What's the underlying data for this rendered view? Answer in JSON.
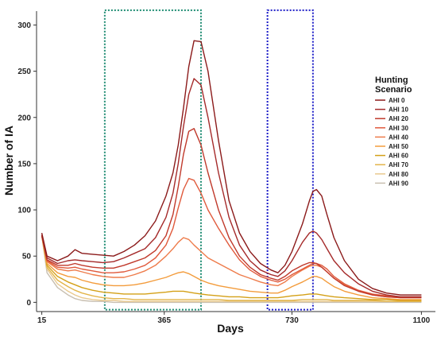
{
  "chart_data": {
    "type": "line",
    "xlabel": "Days",
    "ylabel": "Number of IA",
    "xlim": [
      0,
      1140
    ],
    "ylim": [
      -10,
      315
    ],
    "x_ticks": [
      15,
      365,
      730,
      1100
    ],
    "y_ticks": [
      0,
      50,
      100,
      150,
      200,
      250,
      300
    ],
    "grid": false,
    "legend": {
      "title_lines": [
        "Hunting",
        "Scenario"
      ],
      "position": "right"
    },
    "highlight_boxes": [
      {
        "x0": 195,
        "x1": 470,
        "y0": -8,
        "y1": 316,
        "color": "#1a8a70",
        "style": "dotted"
      },
      {
        "x0": 660,
        "x1": 790,
        "y0": -8,
        "y1": 316,
        "color": "#1c1cc8",
        "style": "dotted"
      }
    ],
    "series": [
      {
        "name": "AHI 0",
        "color": "#8b1a1a",
        "x": [
          15,
          30,
          60,
          90,
          110,
          130,
          160,
          190,
          220,
          250,
          280,
          310,
          340,
          370,
          390,
          405,
          420,
          435,
          450,
          470,
          490,
          520,
          550,
          580,
          610,
          640,
          670,
          690,
          710,
          730,
          760,
          780,
          790,
          800,
          815,
          830,
          850,
          880,
          920,
          960,
          1000,
          1040,
          1080,
          1100
        ],
        "y": [
          75,
          50,
          45,
          50,
          57,
          53,
          52,
          51,
          50,
          55,
          62,
          72,
          88,
          115,
          140,
          170,
          210,
          255,
          283,
          282,
          250,
          175,
          110,
          75,
          55,
          42,
          35,
          32,
          40,
          55,
          85,
          110,
          120,
          122,
          115,
          95,
          70,
          45,
          25,
          15,
          10,
          8,
          8,
          8
        ]
      },
      {
        "name": "AHI 10",
        "color": "#a52a2a",
        "x": [
          15,
          30,
          60,
          90,
          110,
          130,
          160,
          190,
          220,
          250,
          280,
          310,
          340,
          370,
          390,
          405,
          420,
          435,
          450,
          470,
          490,
          520,
          550,
          580,
          610,
          640,
          670,
          690,
          710,
          730,
          760,
          780,
          790,
          800,
          815,
          830,
          850,
          880,
          920,
          960,
          1000,
          1040,
          1080,
          1100
        ],
        "y": [
          73,
          48,
          42,
          45,
          46,
          45,
          44,
          43,
          44,
          48,
          53,
          58,
          70,
          92,
          118,
          150,
          190,
          225,
          242,
          235,
          200,
          140,
          92,
          62,
          45,
          35,
          30,
          28,
          34,
          45,
          65,
          75,
          77,
          75,
          68,
          58,
          45,
          32,
          20,
          12,
          8,
          6,
          6,
          6
        ]
      },
      {
        "name": "AHI 20",
        "color": "#c0392b",
        "x": [
          15,
          30,
          60,
          90,
          110,
          130,
          160,
          190,
          220,
          250,
          280,
          310,
          340,
          370,
          390,
          405,
          420,
          435,
          450,
          470,
          490,
          520,
          550,
          580,
          610,
          640,
          670,
          690,
          710,
          730,
          760,
          780,
          790,
          800,
          815,
          830,
          850,
          880,
          920,
          960,
          1000,
          1040,
          1080,
          1100
        ],
        "y": [
          72,
          46,
          40,
          40,
          42,
          40,
          38,
          37,
          37,
          40,
          44,
          48,
          56,
          72,
          95,
          125,
          160,
          185,
          188,
          170,
          140,
          100,
          70,
          50,
          38,
          30,
          26,
          24,
          28,
          34,
          40,
          43,
          43,
          42,
          38,
          33,
          26,
          18,
          12,
          8,
          6,
          5,
          5,
          5
        ]
      },
      {
        "name": "AHI 30",
        "color": "#e05a3c",
        "x": [
          15,
          30,
          60,
          90,
          110,
          130,
          160,
          190,
          220,
          250,
          280,
          310,
          340,
          370,
          390,
          405,
          420,
          435,
          450,
          470,
          490,
          520,
          550,
          580,
          610,
          640,
          670,
          690,
          710,
          730,
          760,
          780,
          790,
          800,
          815,
          830,
          850,
          880,
          920,
          960,
          1000,
          1040,
          1080,
          1100
        ],
        "y": [
          72,
          45,
          38,
          37,
          38,
          36,
          34,
          32,
          32,
          33,
          36,
          40,
          48,
          62,
          80,
          102,
          122,
          134,
          132,
          118,
          100,
          80,
          62,
          46,
          35,
          28,
          24,
          22,
          25,
          30,
          36,
          40,
          42,
          42,
          40,
          36,
          28,
          20,
          13,
          9,
          7,
          6,
          6,
          6
        ]
      },
      {
        "name": "AHI 40",
        "color": "#ee7b4a",
        "x": [
          15,
          30,
          60,
          90,
          110,
          130,
          160,
          190,
          220,
          250,
          280,
          310,
          340,
          370,
          390,
          405,
          420,
          435,
          450,
          470,
          490,
          520,
          550,
          580,
          610,
          640,
          670,
          690,
          710,
          730,
          760,
          780,
          790,
          800,
          815,
          830,
          850,
          880,
          920,
          960,
          1000,
          1040,
          1080,
          1100
        ],
        "y": [
          72,
          44,
          36,
          34,
          35,
          33,
          30,
          28,
          27,
          27,
          30,
          34,
          40,
          50,
          58,
          65,
          70,
          68,
          62,
          55,
          48,
          42,
          36,
          30,
          26,
          22,
          19,
          18,
          22,
          28,
          35,
          39,
          40,
          40,
          38,
          33,
          26,
          19,
          12,
          8,
          6,
          5,
          5,
          5
        ]
      },
      {
        "name": "AHI 50",
        "color": "#f39c3c",
        "x": [
          15,
          30,
          60,
          90,
          110,
          130,
          160,
          190,
          220,
          250,
          280,
          310,
          340,
          370,
          390,
          405,
          420,
          435,
          450,
          470,
          490,
          520,
          550,
          580,
          610,
          640,
          670,
          690,
          710,
          730,
          760,
          780,
          790,
          800,
          815,
          830,
          850,
          880,
          920,
          960,
          1000,
          1040,
          1080,
          1100
        ],
        "y": [
          72,
          42,
          32,
          28,
          27,
          24,
          21,
          19,
          18,
          18,
          19,
          21,
          24,
          27,
          30,
          32,
          33,
          31,
          28,
          24,
          21,
          18,
          16,
          14,
          12,
          11,
          10,
          10,
          13,
          17,
          22,
          26,
          28,
          28,
          26,
          22,
          17,
          12,
          8,
          5,
          4,
          3,
          3,
          3
        ]
      },
      {
        "name": "AHI 60",
        "color": "#d4a017",
        "x": [
          15,
          30,
          60,
          90,
          110,
          130,
          160,
          190,
          220,
          250,
          280,
          310,
          340,
          370,
          390,
          405,
          420,
          435,
          450,
          470,
          490,
          520,
          550,
          580,
          610,
          640,
          670,
          690,
          710,
          730,
          760,
          780,
          790,
          800,
          815,
          830,
          850,
          880,
          920,
          960,
          1000,
          1040,
          1080,
          1100
        ],
        "y": [
          72,
          40,
          28,
          22,
          19,
          16,
          13,
          11,
          10,
          9,
          9,
          9,
          10,
          11,
          12,
          12,
          12,
          11,
          10,
          9,
          8,
          7,
          6,
          6,
          5,
          5,
          5,
          5,
          6,
          7,
          8,
          9,
          9,
          9,
          8,
          7,
          6,
          5,
          4,
          3,
          3,
          2,
          2,
          2
        ]
      },
      {
        "name": "AHI 70",
        "color": "#e3b54a",
        "x": [
          15,
          30,
          60,
          90,
          110,
          130,
          160,
          190,
          220,
          250,
          280,
          310,
          340,
          370,
          390,
          405,
          420,
          435,
          450,
          470,
          490,
          520,
          550,
          580,
          610,
          640,
          670,
          690,
          710,
          730,
          760,
          780,
          790,
          800,
          815,
          830,
          850,
          880,
          920,
          960,
          1000,
          1040,
          1080,
          1100
        ],
        "y": [
          72,
          38,
          24,
          17,
          13,
          10,
          7,
          5,
          4,
          4,
          3,
          3,
          3,
          3,
          3,
          3,
          3,
          3,
          3,
          3,
          3,
          3,
          2,
          2,
          2,
          2,
          2,
          2,
          2,
          2,
          3,
          3,
          3,
          3,
          3,
          3,
          2,
          2,
          2,
          2,
          1,
          1,
          1,
          1
        ]
      },
      {
        "name": "AHI 80",
        "color": "#e9c98e",
        "x": [
          15,
          30,
          60,
          90,
          110,
          130,
          160,
          190,
          220,
          250,
          280,
          310,
          340,
          370,
          390,
          405,
          420,
          435,
          450,
          470,
          490,
          520,
          550,
          580,
          610,
          640,
          670,
          690,
          710,
          730,
          760,
          780,
          790,
          800,
          815,
          830,
          850,
          880,
          920,
          960,
          1000,
          1040,
          1080,
          1100
        ],
        "y": [
          72,
          36,
          20,
          12,
          8,
          5,
          3,
          2,
          2,
          1,
          1,
          1,
          1,
          1,
          1,
          1,
          1,
          1,
          1,
          1,
          1,
          1,
          1,
          1,
          1,
          1,
          1,
          1,
          1,
          1,
          1,
          1,
          1,
          1,
          1,
          1,
          1,
          1,
          1,
          1,
          1,
          1,
          1,
          1
        ]
      },
      {
        "name": "AHI 90",
        "color": "#c8bfb0",
        "x": [
          15,
          30,
          60,
          90,
          110,
          130,
          160,
          190,
          220,
          250,
          280,
          310,
          340,
          370,
          390,
          405,
          420,
          435,
          450,
          470,
          490,
          520,
          550,
          580,
          610,
          640,
          670,
          690,
          710,
          730,
          760,
          780,
          790,
          800,
          815,
          830,
          850,
          880,
          920,
          960,
          1000,
          1040,
          1080,
          1100
        ],
        "y": [
          72,
          32,
          16,
          8,
          4,
          2,
          1,
          1,
          0,
          0,
          0,
          0,
          0,
          0,
          0,
          0,
          0,
          0,
          0,
          0,
          0,
          0,
          0,
          0,
          0,
          0,
          0,
          0,
          0,
          0,
          0,
          0,
          0,
          0,
          0,
          0,
          0,
          0,
          0,
          0,
          0,
          0,
          0,
          0
        ]
      }
    ]
  }
}
